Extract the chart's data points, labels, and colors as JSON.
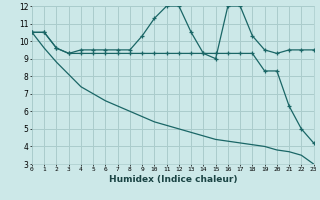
{
  "xlabel": "Humidex (Indice chaleur)",
  "bg_color": "#cce8e8",
  "grid_color": "#aacccc",
  "line_color": "#1a6666",
  "xmin": 0,
  "xmax": 23,
  "ymin": 3,
  "ymax": 12,
  "line1_x": [
    0,
    1,
    2,
    3,
    4,
    5,
    6,
    7,
    8,
    9,
    10,
    11,
    12,
    13,
    14,
    15,
    16,
    17,
    18,
    19,
    20,
    21,
    22,
    23
  ],
  "line1_y": [
    10.5,
    10.5,
    9.6,
    9.3,
    9.5,
    9.5,
    9.5,
    9.5,
    9.5,
    10.3,
    11.3,
    12.0,
    12.0,
    10.5,
    9.3,
    9.0,
    12.0,
    12.0,
    10.3,
    9.5,
    9.3,
    9.5,
    9.5,
    9.5
  ],
  "line2_x": [
    0,
    1,
    2,
    3,
    4,
    5,
    6,
    7,
    8,
    9,
    10,
    11,
    12,
    13,
    14,
    15,
    16,
    17,
    18,
    19,
    20,
    21,
    22,
    23
  ],
  "line2_y": [
    10.5,
    10.5,
    9.6,
    9.3,
    9.3,
    9.3,
    9.3,
    9.3,
    9.3,
    9.3,
    9.3,
    9.3,
    9.3,
    9.3,
    9.3,
    9.3,
    9.3,
    9.3,
    9.3,
    8.3,
    8.3,
    6.3,
    5.0,
    4.2
  ],
  "line3_x": [
    0,
    1,
    2,
    3,
    4,
    5,
    6,
    7,
    8,
    9,
    10,
    11,
    12,
    13,
    14,
    15,
    16,
    17,
    18,
    19,
    20,
    21,
    22,
    23
  ],
  "line3_y": [
    10.5,
    9.6,
    8.8,
    8.1,
    7.4,
    7.0,
    6.6,
    6.3,
    6.0,
    5.7,
    5.4,
    5.2,
    5.0,
    4.8,
    4.6,
    4.4,
    4.3,
    4.2,
    4.1,
    4.0,
    3.8,
    3.7,
    3.5,
    3.0
  ],
  "yticks": [
    3,
    4,
    5,
    6,
    7,
    8,
    9,
    10,
    11,
    12
  ],
  "xticks": [
    0,
    1,
    2,
    3,
    4,
    5,
    6,
    7,
    8,
    9,
    10,
    11,
    12,
    13,
    14,
    15,
    16,
    17,
    18,
    19,
    20,
    21,
    22,
    23
  ]
}
